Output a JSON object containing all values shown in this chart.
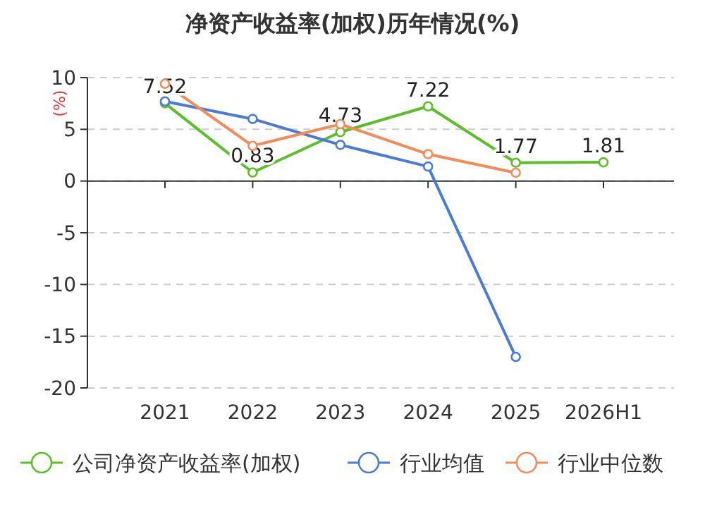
{
  "chart_data": {
    "type": "line",
    "title": "净资产收益率(加权)历年情况(%)",
    "ylabel": "(%)",
    "categories": [
      "2021",
      "2022",
      "2023",
      "2024",
      "2025",
      "2026H1"
    ],
    "series": [
      {
        "name": "公司净资产收益率(加权)",
        "color": "#5cbf2a",
        "values": [
          7.52,
          0.83,
          4.73,
          7.22,
          1.77,
          1.81
        ],
        "value_labels": [
          "7.52",
          "0.83",
          "4.73",
          "7.22",
          "1.77",
          "1.81"
        ]
      },
      {
        "name": "行业均值",
        "color": "#4a7bd6",
        "values": [
          7.7,
          6.0,
          3.5,
          1.4,
          -17.0,
          null
        ]
      },
      {
        "name": "行业中位数",
        "color": "#f48c5a",
        "values": [
          9.4,
          3.4,
          5.5,
          2.6,
          0.8,
          null
        ]
      }
    ],
    "ylim": [
      -20,
      10
    ],
    "yticks": [
      -20,
      -15,
      -10,
      -5,
      0,
      5,
      10
    ],
    "grid": "y",
    "legend": "bottom",
    "marker": "circle",
    "line_style": "solid"
  }
}
